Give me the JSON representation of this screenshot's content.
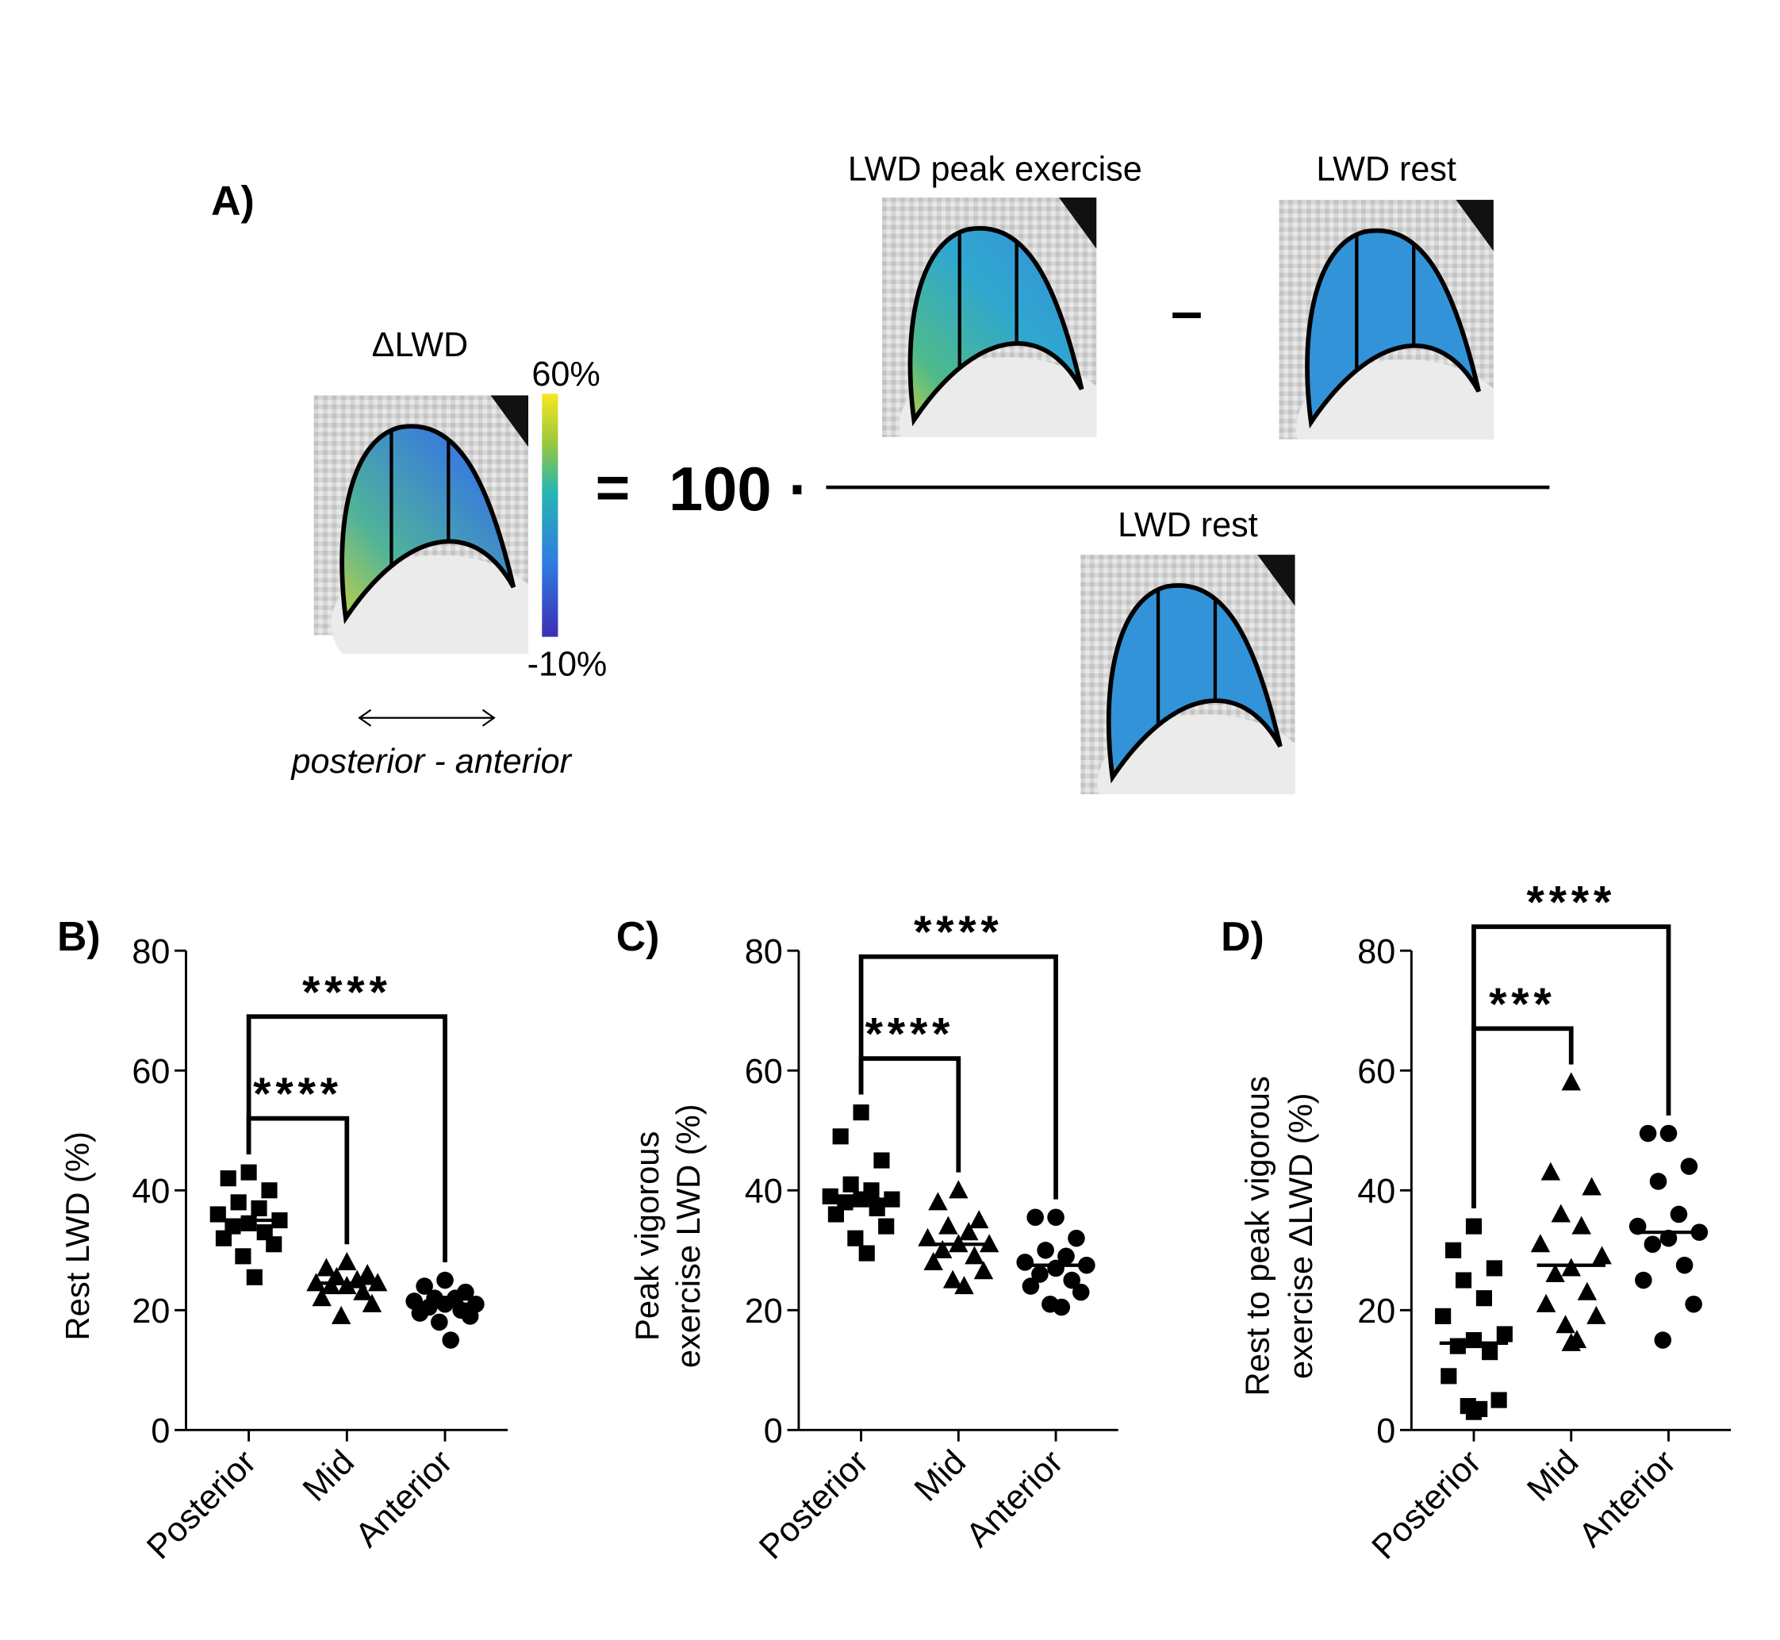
{
  "panel_a": {
    "label": "A)",
    "delta_title": "ΔLWD",
    "colorbar_max": "60%",
    "colorbar_min": "-10%",
    "axis_note": "posterior - anterior",
    "equals": "=",
    "factor": "100 ·",
    "numerator_left": "LWD peak exercise",
    "minus": "–",
    "numerator_right": "LWD rest",
    "denominator": "LWD rest"
  },
  "chart_data": [
    {
      "type": "dot",
      "panel": "B)",
      "ylabel": [
        "Rest LWD (%)"
      ],
      "categories": [
        "Posterior",
        "Mid",
        "Anterior"
      ],
      "markers": [
        "square",
        "triangle",
        "circle"
      ],
      "values": [
        [
          43,
          42,
          40,
          38,
          37,
          36,
          35,
          34.5,
          34,
          33,
          32,
          31,
          29,
          25.5
        ],
        [
          28,
          27,
          26,
          25.5,
          25,
          24.5,
          24.5,
          24,
          24,
          23,
          22,
          21,
          19
        ],
        [
          25,
          24,
          23,
          22,
          22,
          21.5,
          21,
          21,
          20.5,
          20,
          19.5,
          19,
          18,
          15
        ]
      ],
      "medians": [
        35,
        24.5,
        21
      ],
      "ylim": [
        0,
        80
      ],
      "yticks": [
        0,
        20,
        40,
        60,
        80
      ],
      "significance": [
        {
          "from": 0,
          "to": 1,
          "label": "****"
        },
        {
          "from": 0,
          "to": 2,
          "label": "****"
        }
      ]
    },
    {
      "type": "dot",
      "panel": "C)",
      "ylabel": [
        "Peak vigorous",
        "exercise LWD (%)"
      ],
      "categories": [
        "Posterior",
        "Mid",
        "Anterior"
      ],
      "markers": [
        "square",
        "triangle",
        "circle"
      ],
      "values": [
        [
          53,
          49,
          45,
          41,
          40,
          39,
          38.5,
          38.5,
          38,
          37,
          36,
          34,
          32,
          29.5
        ],
        [
          40,
          38,
          35,
          34,
          33,
          32,
          31,
          31,
          30,
          29,
          28,
          26.5,
          25,
          24
        ],
        [
          35.5,
          35.5,
          32,
          30,
          29,
          28,
          27.5,
          27,
          26,
          25,
          24,
          23,
          21,
          20.5
        ]
      ],
      "medians": [
        38.5,
        31,
        27.5
      ],
      "ylim": [
        0,
        80
      ],
      "yticks": [
        0,
        20,
        40,
        60,
        80
      ],
      "significance": [
        {
          "from": 0,
          "to": 1,
          "label": "****"
        },
        {
          "from": 0,
          "to": 2,
          "label": "****"
        }
      ]
    },
    {
      "type": "dot",
      "panel": "D)",
      "ylabel": [
        "Rest to peak vigorous",
        "exercise ΔLWD (%)"
      ],
      "categories": [
        "Posterior",
        "Mid",
        "Anterior"
      ],
      "markers": [
        "square",
        "triangle",
        "circle"
      ],
      "values": [
        [
          34,
          30,
          27,
          25,
          22,
          19,
          16,
          15,
          14,
          13,
          9,
          5,
          4,
          3.5,
          3
        ],
        [
          58,
          43,
          40.5,
          36,
          34,
          31,
          29,
          27,
          26,
          23,
          21,
          19,
          17.5,
          15,
          14.5
        ],
        [
          49.5,
          49.5,
          44,
          41.5,
          36,
          34,
          33,
          32,
          31,
          27.5,
          25,
          21,
          15
        ]
      ],
      "medians": [
        14.5,
        27.5,
        33
      ],
      "ylim": [
        0,
        80
      ],
      "yticks": [
        0,
        20,
        40,
        60,
        80
      ],
      "significance": [
        {
          "from": 0,
          "to": 1,
          "label": "***"
        },
        {
          "from": 0,
          "to": 2,
          "label": "****"
        }
      ]
    }
  ]
}
